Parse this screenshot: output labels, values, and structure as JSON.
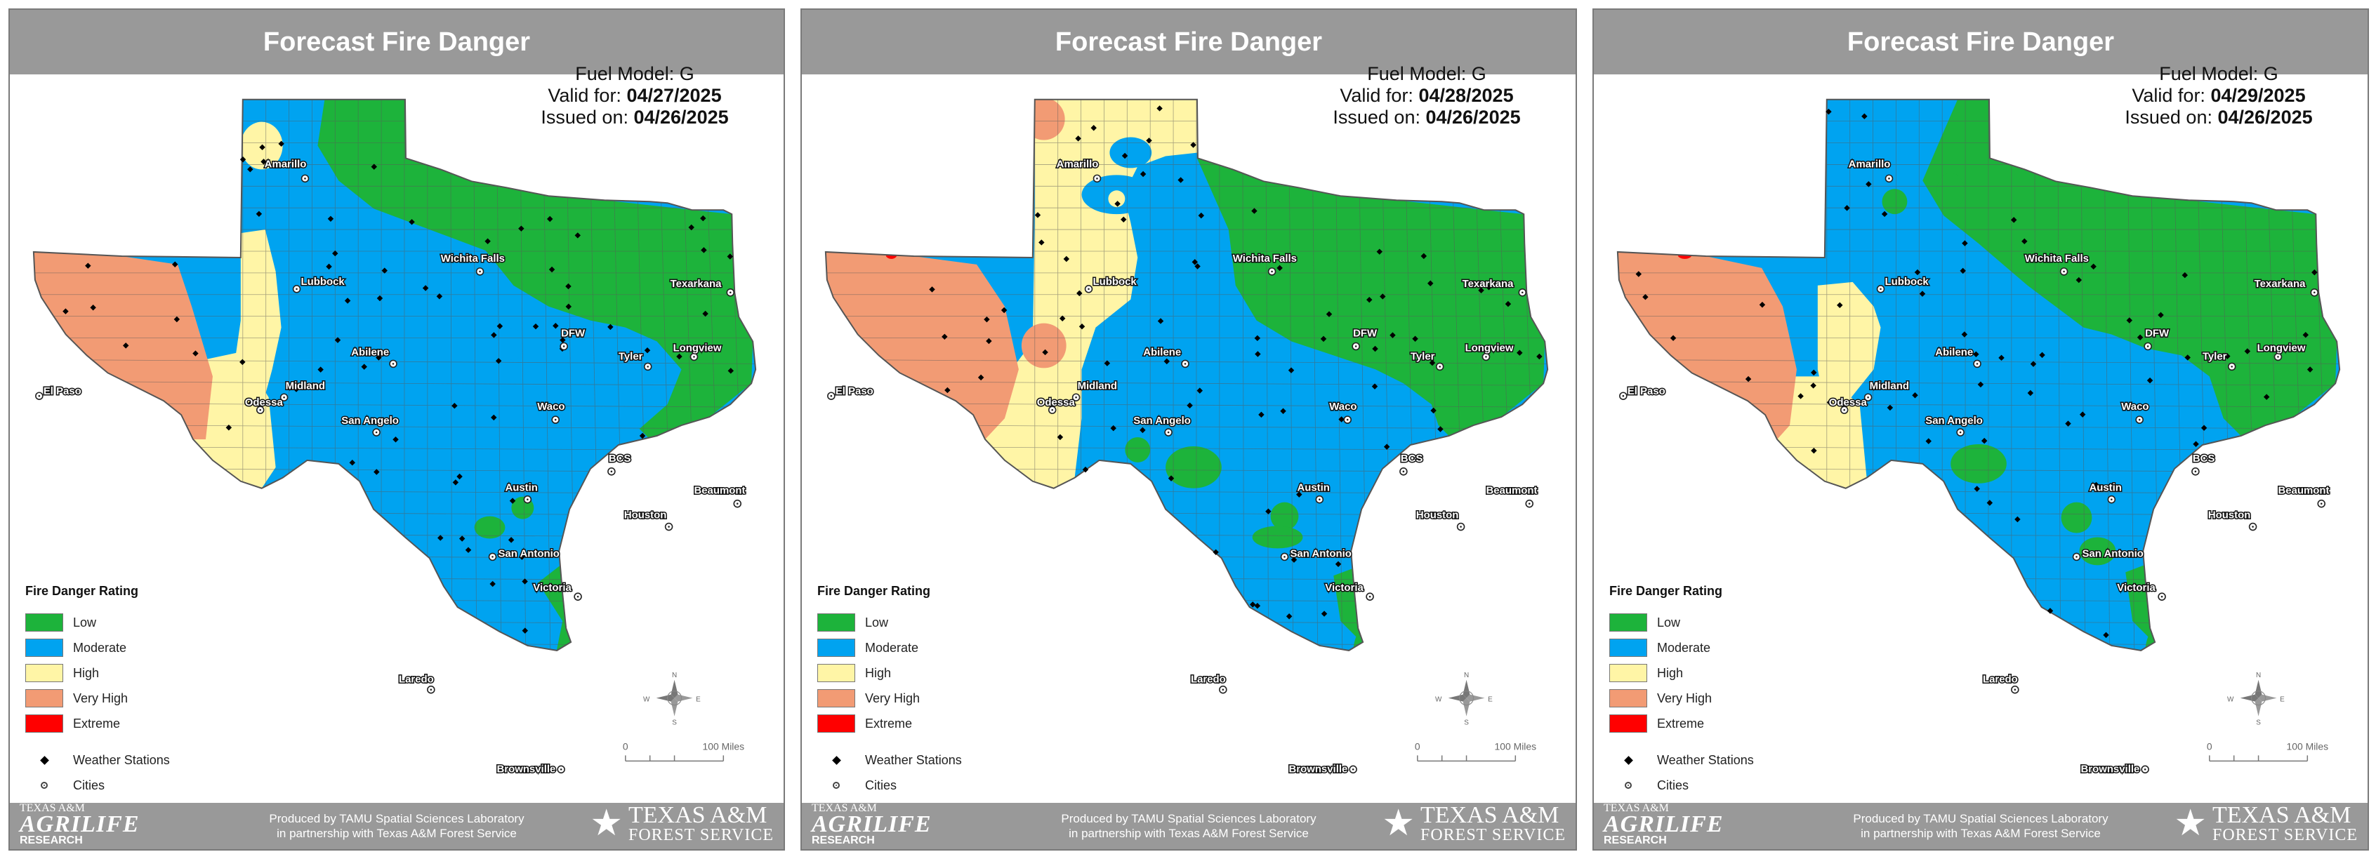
{
  "colors": {
    "low": "#1db33b",
    "moderate": "#00a3f0",
    "high": "#fff5a6",
    "very_high": "#f29b74",
    "extreme": "#ff0000",
    "header_bg": "#999999"
  },
  "panels": [
    {
      "title": "Forecast Fire Danger",
      "fuel_model": "Fuel Model: G",
      "valid_label": "Valid for:",
      "valid_date": "04/27/2025",
      "issued_label": "Issued on:",
      "issued_date": "04/26/2025"
    },
    {
      "title": "Forecast Fire Danger",
      "fuel_model": "Fuel Model: G",
      "valid_label": "Valid for:",
      "valid_date": "04/28/2025",
      "issued_label": "Issued on:",
      "issued_date": "04/26/2025"
    },
    {
      "title": "Forecast Fire Danger",
      "fuel_model": "Fuel Model: G",
      "valid_label": "Valid for:",
      "valid_date": "04/29/2025",
      "issued_label": "Issued on:",
      "issued_date": "04/26/2025"
    }
  ],
  "legend": {
    "title": "Fire Danger Rating",
    "items": [
      {
        "label": "Low",
        "key": "low"
      },
      {
        "label": "Moderate",
        "key": "moderate"
      },
      {
        "label": "High",
        "key": "high"
      },
      {
        "label": "Very High",
        "key": "very_high"
      },
      {
        "label": "Extreme",
        "key": "extreme"
      }
    ],
    "weather_stations": "Weather Stations",
    "cities": "Cities"
  },
  "cities": [
    "Amarillo",
    "Lubbock",
    "Wichita Falls",
    "Texarkana",
    "DFW",
    "Abilene",
    "Tyler",
    "Longview",
    "El Paso",
    "Midland",
    "Odessa",
    "San Angelo",
    "Waco",
    "BCS",
    "Austin",
    "Beaumont",
    "Houston",
    "San Antonio",
    "Victoria",
    "Laredo",
    "Brownsville"
  ],
  "scale": {
    "zero": "0",
    "end": "100 Miles"
  },
  "compass": {
    "n": "N",
    "s": "S",
    "e": "E",
    "w": "W"
  },
  "footer": {
    "credit_line1": "Produced by TAMU Spatial Sciences Laboratory",
    "credit_line2": "in partnership with Texas A&M Forest Service",
    "agrilife_small": "TEXAS A&M",
    "agrilife_big": "AGRILIFE",
    "agrilife_research": "RESEARCH",
    "tfs_line1": "TEXAS A&M",
    "tfs_line2": "FOREST SERVICE"
  }
}
